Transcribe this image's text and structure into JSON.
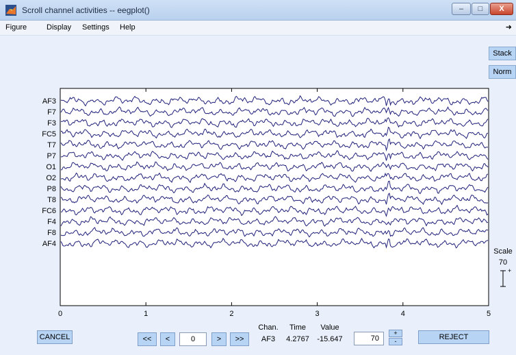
{
  "window": {
    "title": "Scroll channel activities -- eegplot()",
    "minimize": "–",
    "maximize": "□",
    "close": "X"
  },
  "menu": {
    "items": [
      "Figure",
      "Display",
      "Settings",
      "Help"
    ],
    "overflow": "➜"
  },
  "side_buttons": {
    "stack": "Stack",
    "norm": "Norm"
  },
  "plot": {
    "channels": [
      "AF3",
      "F7",
      "F3",
      "FC5",
      "T7",
      "P7",
      "O1",
      "O2",
      "P8",
      "T8",
      "FC6",
      "F4",
      "F8",
      "AF4"
    ],
    "xticks": [
      "0",
      "1",
      "2",
      "3",
      "4",
      "5"
    ],
    "xlim": [
      0,
      5
    ],
    "trace_color": "#1f1f7a"
  },
  "scale": {
    "label": "Scale",
    "value": "70",
    "plus": "+"
  },
  "bottom": {
    "cancel": "CANCEL",
    "nav_fast_back": "<<",
    "nav_back": "<",
    "position": "0",
    "nav_forward": ">",
    "nav_fast_forward": ">>",
    "chan_header": "Chan.",
    "time_header": "Time",
    "value_header": "Value",
    "chan_value": "AF3",
    "time_value": "4.2767",
    "value_value": "-15.647",
    "scale_input": "70",
    "spin_up": "+",
    "spin_down": "-",
    "reject": "REJECT"
  }
}
